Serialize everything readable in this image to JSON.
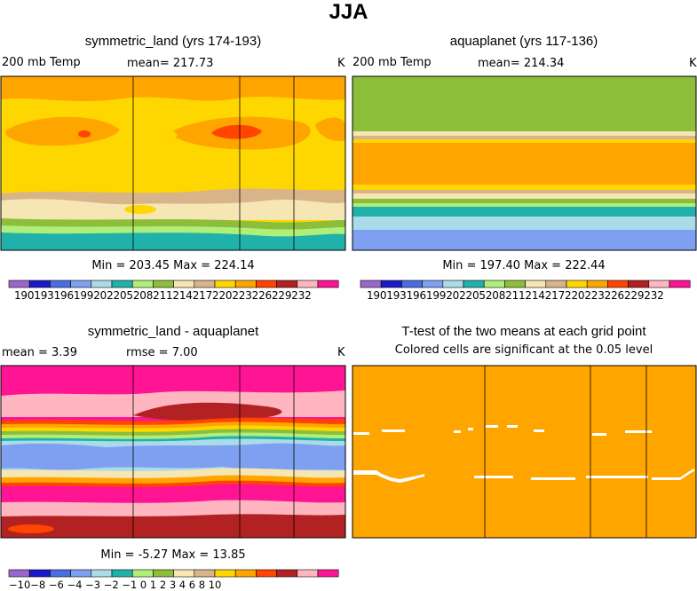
{
  "figure": {
    "title": "JJA"
  },
  "panels": [
    {
      "id": "p1",
      "title": "symmetric_land (yrs 174-193)",
      "left_label": "200 mb Temp",
      "mean_text": "mean= 217.73",
      "units": "K",
      "minmax_text": "Min = 203.45  Max = 224.14",
      "colorbar_labels": "190193196199202205208211214217220223226229232"
    },
    {
      "id": "p2",
      "title": "aquaplanet (yrs 117-136)",
      "left_label": "200 mb Temp",
      "mean_text": "mean= 214.34",
      "units": "K",
      "minmax_text": "Min = 197.40  Max = 222.44",
      "colorbar_labels": "190193196199202205208211214217220223226229232"
    },
    {
      "id": "p3",
      "title": "symmetric_land - aquaplanet",
      "left_label": "mean =    3.39",
      "mean_text": "rmse =    7.00",
      "units": "K",
      "minmax_text": "Min =   -5.27  Max =   13.85",
      "colorbar_labels": "−10−8 −6 −4 −3 −2 −1  0   1   2   3   4   6   8  10"
    },
    {
      "id": "p4",
      "title": "T-test of the two means at each grid point",
      "subtitle": "Colored cells are significant at the 0.05 level"
    }
  ],
  "colors": {
    "abs_palette": [
      "#9966cc",
      "#1a1ac8",
      "#4a6ee0",
      "#7fa0f0",
      "#aadbe8",
      "#20b2aa",
      "#b0ee7a",
      "#8cbe3c",
      "#f5e6b4",
      "#d8b48a",
      "#ffd700",
      "#ffa500",
      "#ff4500",
      "#b22222",
      "#ffb6c1",
      "#ff1493"
    ],
    "diff_palette": [
      "#9966cc",
      "#1a1ac8",
      "#4a6ee0",
      "#7fa0f0",
      "#aadbe8",
      "#20b2aa",
      "#b0ee7a",
      "#8cbe3c",
      "#f5e6b4",
      "#d8b48a",
      "#ffd700",
      "#ffa500",
      "#ff4500",
      "#b22222",
      "#ffb6c1",
      "#ff1493"
    ],
    "significant": "#ffa500"
  },
  "chart_data": [
    {
      "type": "heatmap",
      "title": "symmetric_land (yrs 174-193)",
      "variable": "200 mb Temp",
      "units": "K",
      "mean": 217.73,
      "min": 203.45,
      "max": 224.14,
      "levels": [
        190,
        193,
        196,
        199,
        202,
        205,
        208,
        211,
        214,
        217,
        220,
        223,
        226,
        229,
        232
      ]
    },
    {
      "type": "heatmap",
      "title": "aquaplanet (yrs 117-136)",
      "variable": "200 mb Temp",
      "units": "K",
      "mean": 214.34,
      "min": 197.4,
      "max": 222.44,
      "levels": [
        190,
        193,
        196,
        199,
        202,
        205,
        208,
        211,
        214,
        217,
        220,
        223,
        226,
        229,
        232
      ]
    },
    {
      "type": "heatmap",
      "title": "symmetric_land - aquaplanet",
      "units": "K",
      "mean": 3.39,
      "rmse": 7.0,
      "min": -5.27,
      "max": 13.85,
      "levels": [
        -10,
        -8,
        -6,
        -4,
        -3,
        -2,
        -1,
        0,
        1,
        2,
        3,
        4,
        6,
        8,
        10
      ]
    },
    {
      "type": "heatmap",
      "title": "T-test of the two means at each grid point",
      "note": "Colored cells are significant at the 0.05 level"
    }
  ]
}
